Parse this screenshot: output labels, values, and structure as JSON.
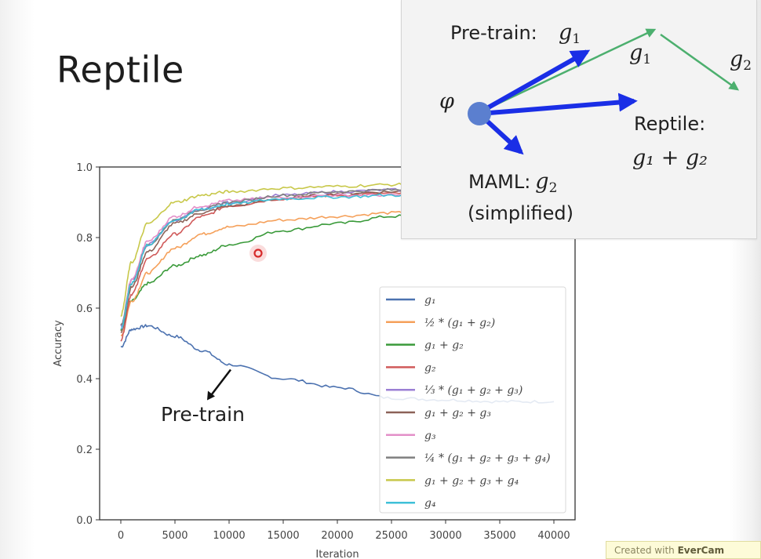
{
  "slide": {
    "title": "Reptile",
    "annotation": "Pre-train",
    "watermark_prefix": "Created with",
    "watermark_brand": "EverCam"
  },
  "inset": {
    "pretrain_label": "Pre-train:",
    "pretrain_math": "g",
    "pretrain_sub": "1",
    "phi": "φ",
    "g1_label": "g",
    "g1_sub": "1",
    "g2_label": "g",
    "g2_sub": "2",
    "reptile_label": "Reptile:",
    "reptile_math": "g₁ + g₂",
    "maml_label": "MAML:",
    "maml_math": "g",
    "maml_sub": "2",
    "maml_note": "(simplified)",
    "colors": {
      "blue_arrow": "#1a2ee6",
      "green_arrow": "#4caf6e",
      "point": "#5b7fcf"
    }
  },
  "chart_data": {
    "type": "line",
    "title": "",
    "xlabel": "Iteration",
    "ylabel": "Accuracy",
    "xlim": [
      0,
      40000
    ],
    "ylim": [
      0.0,
      1.0
    ],
    "xticks": [
      "0",
      "5000",
      "10000",
      "15000",
      "20000",
      "25000",
      "30000",
      "35000",
      "40000"
    ],
    "yticks": [
      "0.0",
      "0.2",
      "0.4",
      "0.6",
      "0.8",
      "1.0"
    ],
    "grid": false,
    "legend_position": "lower right",
    "x": [
      0,
      1000,
      2500,
      5000,
      7500,
      10000,
      15000,
      20000,
      25000,
      30000,
      35000,
      40000
    ],
    "series": [
      {
        "name": "g₁",
        "color": "#4c72b0",
        "values": [
          0.49,
          0.54,
          0.55,
          0.52,
          0.48,
          0.44,
          0.4,
          0.375,
          0.345,
          0.34,
          0.335,
          0.335
        ]
      },
      {
        "name": "½ * (g₁ + g₂)",
        "color": "#f5a05a",
        "values": [
          0.52,
          0.62,
          0.7,
          0.77,
          0.81,
          0.83,
          0.85,
          0.86,
          0.87,
          0.875,
          0.88,
          0.885
        ]
      },
      {
        "name": "g₁ + g₂",
        "color": "#3a9a3a",
        "values": [
          0.54,
          0.62,
          0.67,
          0.72,
          0.75,
          0.78,
          0.82,
          0.84,
          0.86,
          0.87,
          0.88,
          0.885
        ]
      },
      {
        "name": "g₂",
        "color": "#d05a5a",
        "values": [
          0.51,
          0.64,
          0.74,
          0.81,
          0.86,
          0.89,
          0.91,
          0.92,
          0.925,
          0.93,
          0.93,
          0.935
        ]
      },
      {
        "name": "⅓ * (g₁ + g₂ + g₃)",
        "color": "#9b7fd4",
        "values": [
          0.55,
          0.68,
          0.78,
          0.85,
          0.88,
          0.9,
          0.92,
          0.93,
          0.935,
          0.94,
          0.94,
          0.945
        ]
      },
      {
        "name": "g₁ + g₂ + g₃",
        "color": "#8c6258",
        "values": [
          0.53,
          0.66,
          0.76,
          0.84,
          0.87,
          0.89,
          0.91,
          0.925,
          0.93,
          0.935,
          0.94,
          0.94
        ]
      },
      {
        "name": "g₃",
        "color": "#e38fc8",
        "values": [
          0.54,
          0.68,
          0.79,
          0.86,
          0.89,
          0.905,
          0.915,
          0.92,
          0.92,
          0.92,
          0.92,
          0.92
        ]
      },
      {
        "name": "¼ * (g₁ + g₂ + g₃ + g₄)",
        "color": "#7f7f7f",
        "values": [
          0.55,
          0.67,
          0.78,
          0.85,
          0.88,
          0.9,
          0.92,
          0.93,
          0.935,
          0.94,
          0.94,
          0.945
        ]
      },
      {
        "name": "g₁ + g₂ + g₃ + g₄",
        "color": "#c8c84a",
        "values": [
          0.58,
          0.73,
          0.84,
          0.9,
          0.92,
          0.93,
          0.94,
          0.945,
          0.95,
          0.95,
          0.955,
          0.955
        ]
      },
      {
        "name": "g₄",
        "color": "#3fc0d8",
        "values": [
          0.54,
          0.67,
          0.78,
          0.85,
          0.88,
          0.895,
          0.91,
          0.915,
          0.92,
          0.925,
          0.93,
          0.93
        ]
      }
    ],
    "annotations": [
      {
        "text": "Pre-train",
        "points_to_series": "g₁",
        "at_x": 10000
      }
    ]
  }
}
